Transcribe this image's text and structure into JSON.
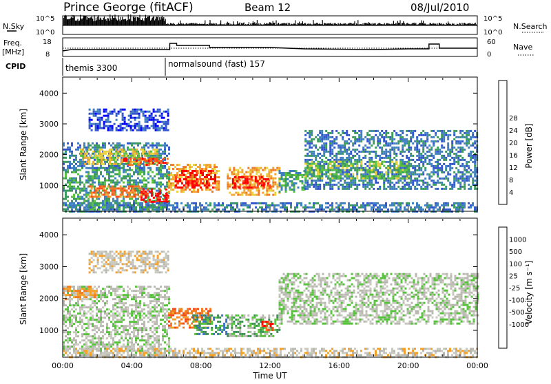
{
  "header": {
    "station": "Prince George (fitACF)",
    "beam": "Beam 12",
    "date": "08/Jul/2010"
  },
  "strip": {
    "nsky_label": "N.Sky",
    "sky_ticks": [
      "10^5",
      "10^0"
    ],
    "nsearch_label": "N.Search",
    "freq_label_1": "Freq.",
    "freq_label_2": "[MHz]",
    "freq_ticks": [
      "18",
      "8"
    ],
    "nave_ticks": [
      "60",
      "0"
    ],
    "nave_label": "Nave",
    "cpid_label": "CPID",
    "cpid_1": "themis 3300",
    "cpid_2": "normalsound (fast) 157"
  },
  "colors": {
    "power": [
      "#0000ff",
      "#3355cc",
      "#3f7fbf",
      "#3a9a5c",
      "#59c13e",
      "#e8d13a",
      "#f2a533",
      "#f07a24",
      "#ff4a1a",
      "#ff0000"
    ],
    "velocity": [
      "#2222bb",
      "#3a6fc8",
      "#3b8f52",
      "#57c23c",
      "#b8b8b0",
      "#c8c8bf",
      "#f2a12a",
      "#f47a20",
      "#f24a1a",
      "#ff0000"
    ],
    "ground_scatter": "#bbbbb3"
  },
  "chart_data": [
    {
      "type": "heatmap",
      "ylabel": "Slant Range [km]",
      "ylim": [
        180,
        4500
      ],
      "yticks": [
        "1000",
        "2000",
        "3000",
        "4000"
      ],
      "x_ticks": [
        "00:00",
        "04:00",
        "08:00",
        "12:00",
        "16:00",
        "20:00",
        "00:00"
      ],
      "x_range_hours": [
        0,
        24
      ],
      "colorbar": {
        "label": "Power [dB]",
        "ticks": [
          "4",
          "8",
          "12",
          "16",
          "20",
          "24",
          "28"
        ],
        "range": [
          0,
          32
        ]
      },
      "regions": [
        {
          "t0": 0.0,
          "t1": 6.1,
          "r0": 200,
          "r1": 1600,
          "level": 3
        },
        {
          "t0": 0.0,
          "t1": 6.1,
          "r0": 1550,
          "r1": 2400,
          "level": 2
        },
        {
          "t0": 1.0,
          "t1": 5.5,
          "r0": 1700,
          "r1": 2200,
          "level": 5
        },
        {
          "t0": 3.5,
          "t1": 6.1,
          "r0": 1650,
          "r1": 1900,
          "level": 8
        },
        {
          "t0": 4.5,
          "t1": 6.1,
          "r0": 450,
          "r1": 900,
          "level": 9
        },
        {
          "t0": 1.5,
          "t1": 4.5,
          "r0": 600,
          "r1": 1000,
          "level": 7
        },
        {
          "t0": 1.5,
          "t1": 6.1,
          "r0": 2800,
          "r1": 3500,
          "level": 1
        },
        {
          "t0": 6.1,
          "t1": 9.0,
          "r0": 800,
          "r1": 1700,
          "level": 6
        },
        {
          "t0": 6.5,
          "t1": 8.8,
          "r0": 900,
          "r1": 1500,
          "level": 9
        },
        {
          "t0": 9.5,
          "t1": 12.5,
          "r0": 700,
          "r1": 1600,
          "level": 6
        },
        {
          "t0": 9.8,
          "t1": 12.0,
          "r0": 900,
          "r1": 1300,
          "level": 9
        },
        {
          "t0": 12.5,
          "t1": 14.0,
          "r0": 800,
          "r1": 1500,
          "level": 3
        },
        {
          "t0": 14.0,
          "t1": 24.0,
          "r0": 900,
          "r1": 2800,
          "level": 2
        },
        {
          "t0": 14.0,
          "t1": 20.0,
          "r0": 1200,
          "r1": 1800,
          "level": 4
        },
        {
          "t0": 0.0,
          "t1": 24.0,
          "r0": 180,
          "r1": 450,
          "level": 2
        }
      ]
    },
    {
      "type": "heatmap",
      "ylabel": "Slant Range [km]",
      "ylim": [
        180,
        4500
      ],
      "yticks": [
        "1000",
        "2000",
        "3000",
        "4000"
      ],
      "x_ticks": [
        "00:00",
        "04:00",
        "08:00",
        "12:00",
        "16:00",
        "20:00",
        "00:00"
      ],
      "xlabel": "Time UT",
      "x_range_hours": [
        0,
        24
      ],
      "colorbar": {
        "label": "Velocity [m s⁻¹]",
        "ticks": [
          "1000",
          "500",
          "100",
          "25",
          "-25",
          "-100",
          "-500",
          "-1000"
        ],
        "range": [
          -1000,
          1000
        ]
      },
      "regions": [
        {
          "t0": 0.0,
          "t1": 6.1,
          "r0": 200,
          "r1": 2400,
          "level": 4
        },
        {
          "t0": 0.0,
          "t1": 2.0,
          "r0": 2000,
          "r1": 2400,
          "level": 6
        },
        {
          "t0": 1.5,
          "t1": 6.1,
          "r0": 2800,
          "r1": 3500,
          "level": 5
        },
        {
          "t0": 6.1,
          "t1": 8.5,
          "r0": 1100,
          "r1": 1700,
          "level": 7
        },
        {
          "t0": 7.5,
          "t1": 9.5,
          "r0": 900,
          "r1": 1500,
          "level": 2
        },
        {
          "t0": 9.5,
          "t1": 12.5,
          "r0": 800,
          "r1": 1500,
          "level": 3
        },
        {
          "t0": 11.5,
          "t1": 12.2,
          "r0": 1000,
          "r1": 1300,
          "level": 8
        },
        {
          "t0": 12.5,
          "t1": 24.0,
          "r0": 1200,
          "r1": 2800,
          "level": 4
        },
        {
          "t0": 0.0,
          "t1": 24.0,
          "r0": 180,
          "r1": 450,
          "level": 5
        }
      ]
    }
  ]
}
